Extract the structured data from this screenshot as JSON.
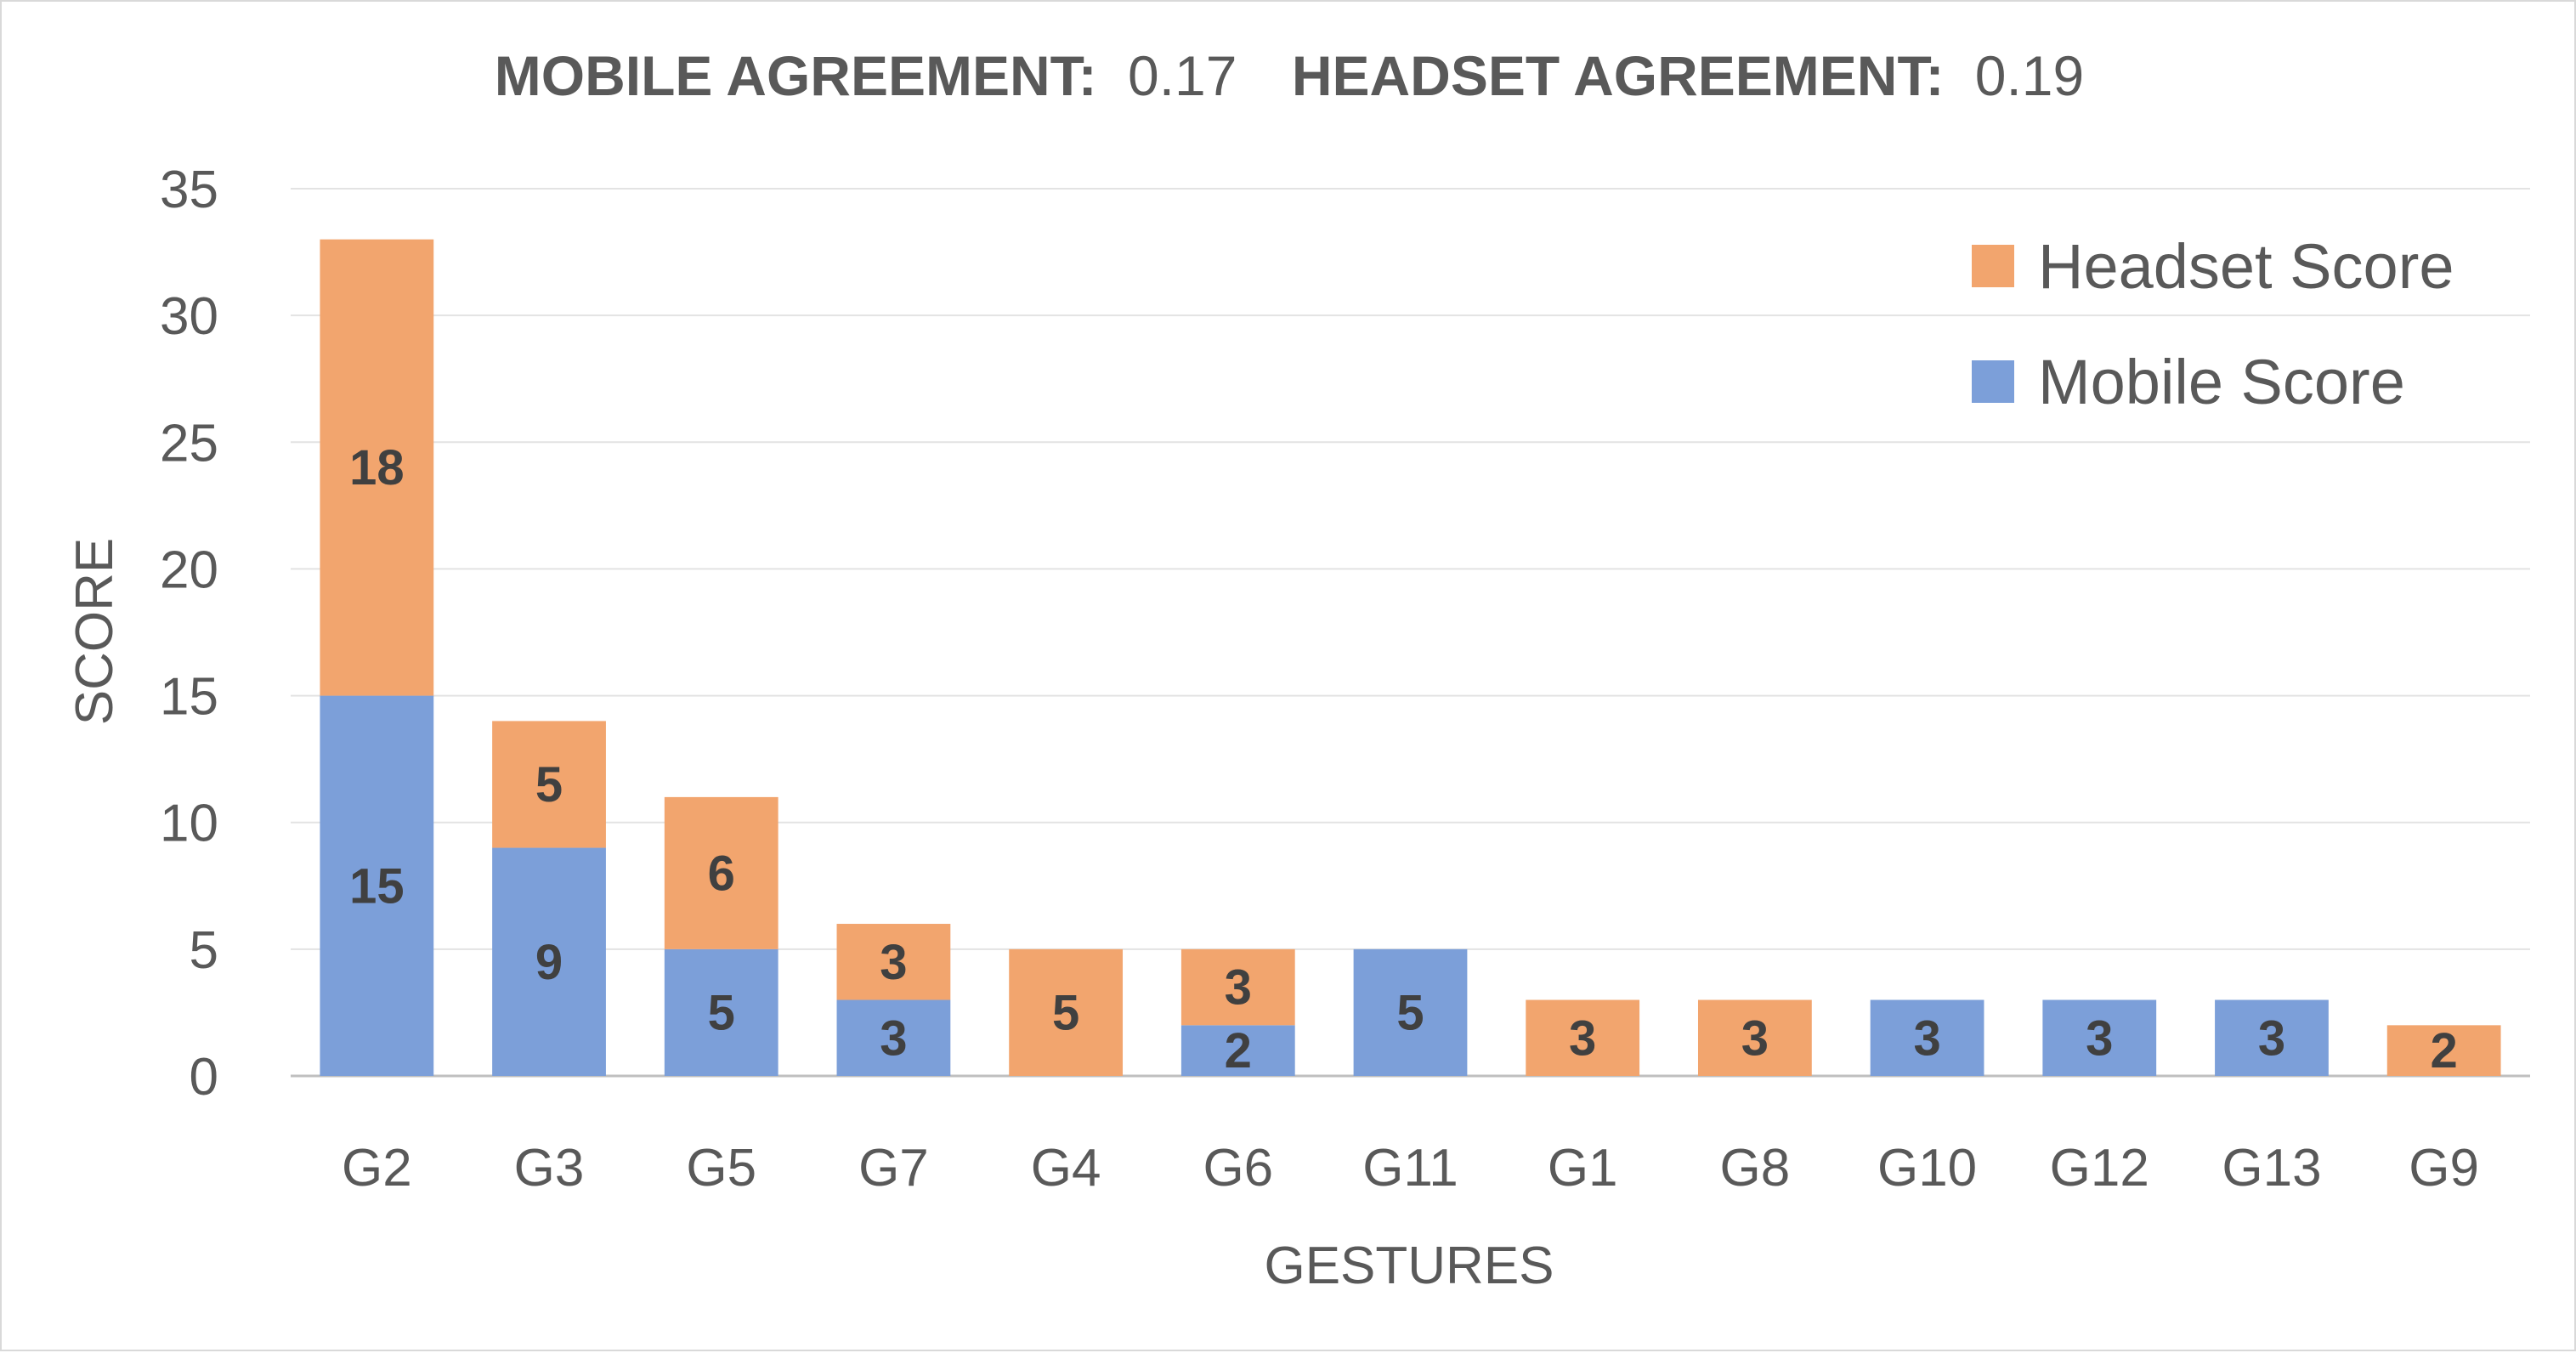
{
  "chart_data": {
    "type": "bar",
    "stacked": true,
    "title": {
      "mobile_label": "MOBILE AGREEMENT:",
      "mobile_value": "0.17",
      "headset_label": "HEADSET AGREEMENT:",
      "headset_value": "0.19"
    },
    "xlabel": "GESTURES",
    "ylabel": "SCORE",
    "ylim": [
      0,
      35
    ],
    "yticks": [
      0,
      5,
      10,
      15,
      20,
      25,
      30,
      35
    ],
    "grid": true,
    "legend_position": "top-right",
    "categories": [
      "G2",
      "G3",
      "G5",
      "G7",
      "G4",
      "G6",
      "G11",
      "G1",
      "G8",
      "G10",
      "G12",
      "G13",
      "G9"
    ],
    "series": [
      {
        "name": "Mobile Score",
        "color": "#7c9fd9",
        "values": [
          15,
          9,
          5,
          3,
          0,
          2,
          5,
          0,
          0,
          3,
          3,
          3,
          0
        ]
      },
      {
        "name": "Headset Score",
        "color": "#f2a56e",
        "values": [
          18,
          5,
          6,
          3,
          5,
          3,
          0,
          3,
          3,
          0,
          0,
          0,
          2
        ]
      }
    ],
    "legend_order": [
      "Headset Score",
      "Mobile Score"
    ]
  }
}
